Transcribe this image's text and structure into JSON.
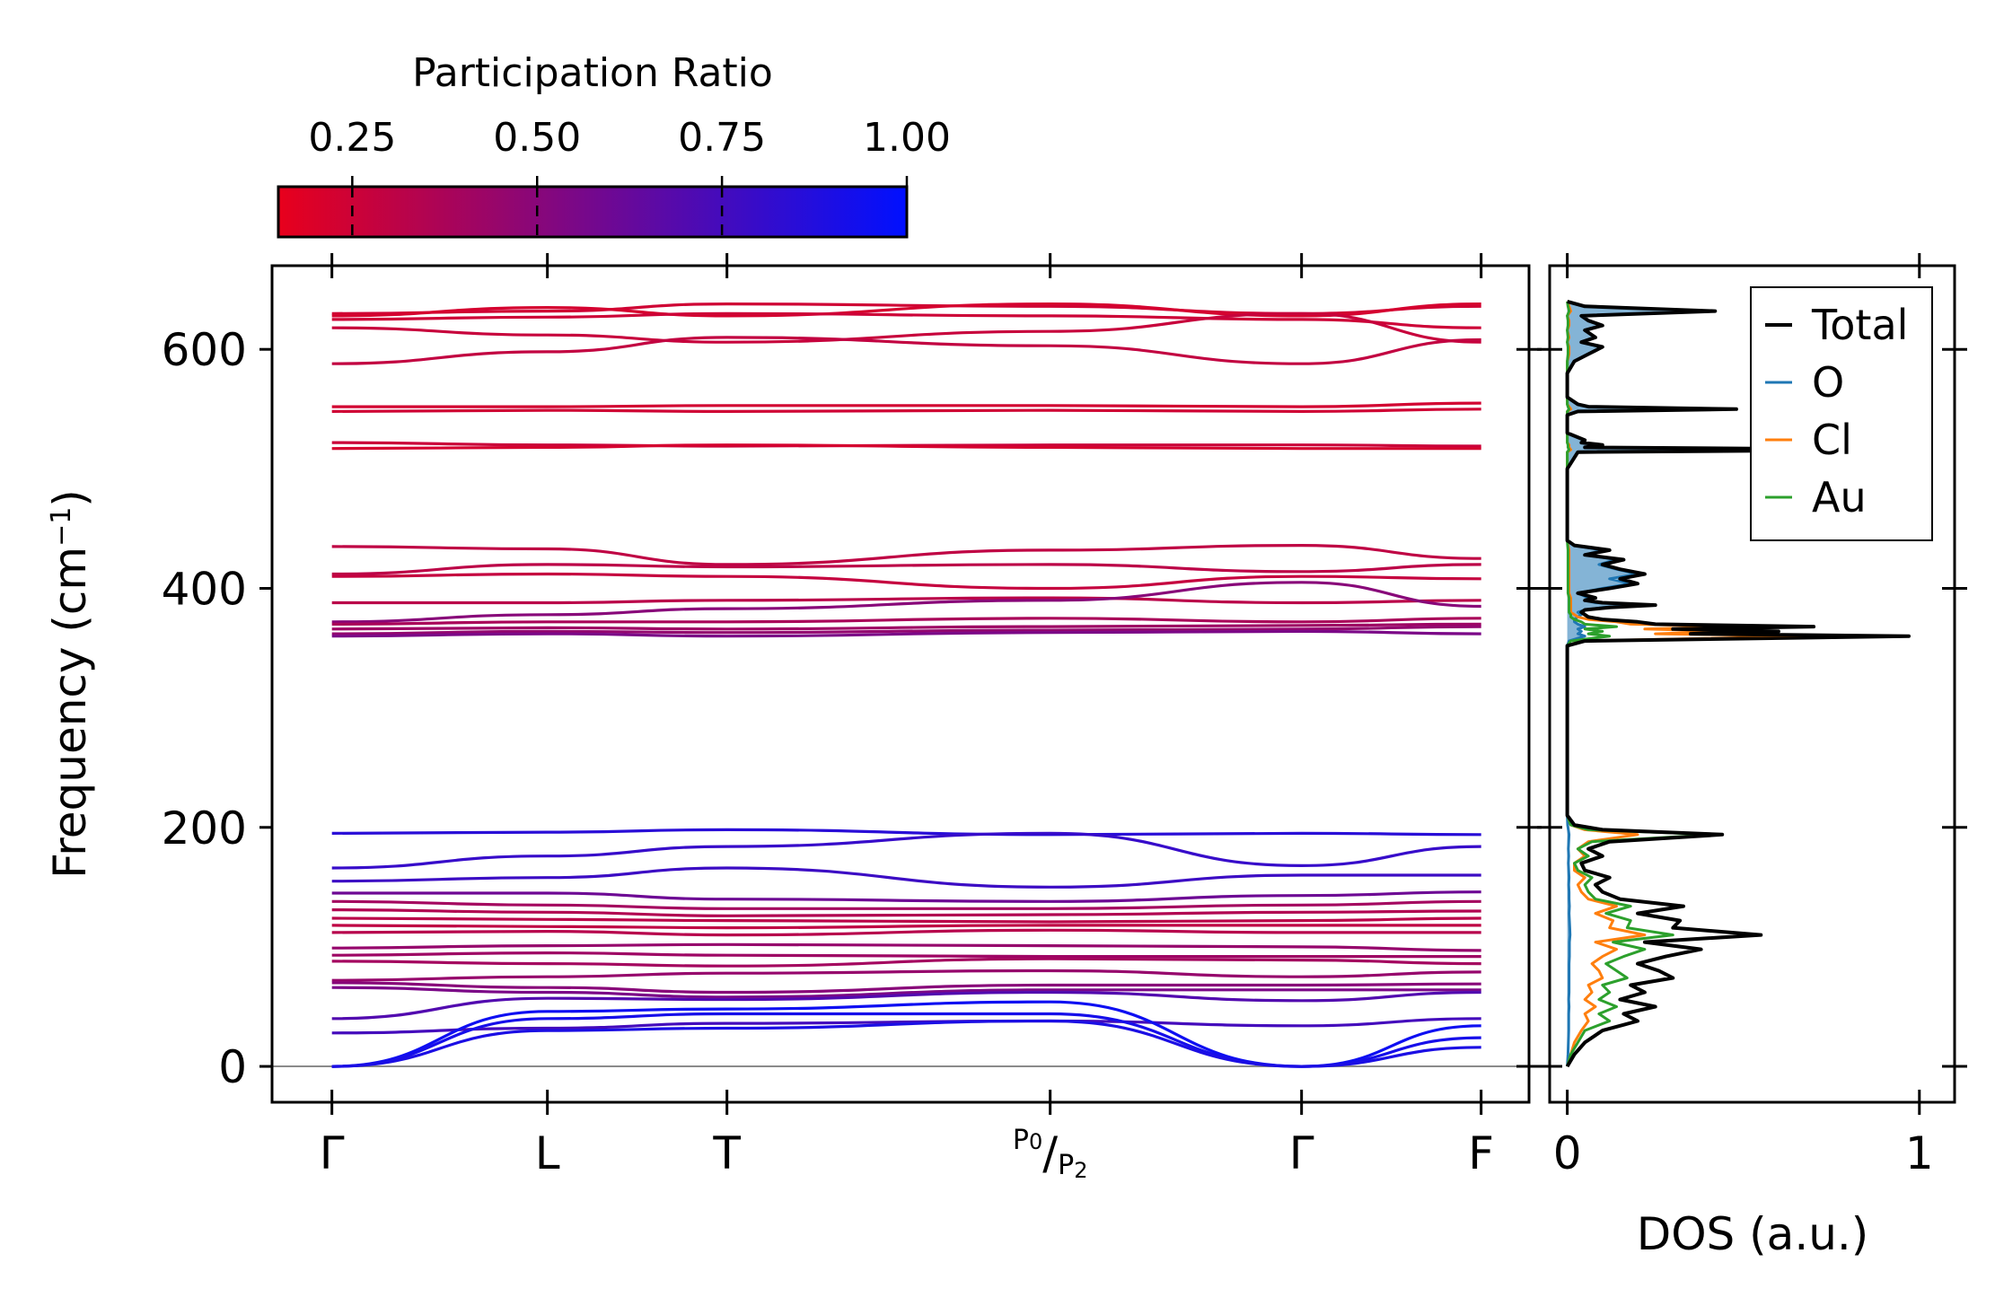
{
  "chart_data": [
    {
      "type": "line",
      "name": "phonon-band-structure",
      "ylabel": "Frequency (cm⁻¹)",
      "ylabel_parts": {
        "base": "Frequency (cm",
        "sup": "−1",
        "close": ")"
      },
      "ylim": [
        -30,
        670
      ],
      "yticks": [
        0,
        200,
        400,
        600
      ],
      "kpath": [
        {
          "label": "Γ",
          "pos": 0.0
        },
        {
          "label": "L",
          "pos": 0.18
        },
        {
          "label": "T",
          "pos": 0.33
        },
        {
          "label": "P0/P2",
          "pos": 0.6
        },
        {
          "label": "Γ",
          "pos": 0.81
        },
        {
          "label": "F",
          "pos": 0.96
        }
      ],
      "kpath_xlim": [
        -0.05,
        1.0
      ],
      "special_label": {
        "a": "P",
        "a_sub": "0",
        "slash": "/",
        "b": "P",
        "b_sub": "2"
      },
      "colorbar": {
        "title": "Participation Ratio",
        "ticks": [
          "0.25",
          "0.50",
          "0.75",
          "1.00"
        ],
        "tick_values": [
          0.25,
          0.5,
          0.75,
          1.0
        ],
        "range": [
          0.15,
          1.0
        ],
        "low_color": "#e8001c",
        "high_color": "#0010ff"
      },
      "branches": [
        {
          "f": [
            630,
            632,
            638,
            636,
            630,
            636
          ],
          "pr": 0.24
        },
        {
          "f": [
            628,
            635,
            628,
            638,
            628,
            638
          ],
          "pr": 0.22
        },
        {
          "f": [
            625,
            627,
            630,
            628,
            625,
            618
          ],
          "pr": 0.25
        },
        {
          "f": [
            618,
            612,
            606,
            615,
            630,
            606
          ],
          "pr": 0.27
        },
        {
          "f": [
            588,
            598,
            610,
            603,
            588,
            608
          ],
          "pr": 0.29
        },
        {
          "f": [
            552,
            552,
            553,
            553,
            552,
            555
          ],
          "pr": 0.23
        },
        {
          "f": [
            548,
            549,
            548,
            549,
            548,
            550
          ],
          "pr": 0.24
        },
        {
          "f": [
            522,
            520,
            519,
            520,
            520,
            519
          ],
          "pr": 0.26
        },
        {
          "f": [
            517,
            518,
            520,
            518,
            517,
            517
          ],
          "pr": 0.22
        },
        {
          "f": [
            435,
            433,
            420,
            432,
            436,
            425
          ],
          "pr": 0.3
        },
        {
          "f": [
            412,
            420,
            418,
            420,
            414,
            420
          ],
          "pr": 0.31
        },
        {
          "f": [
            410,
            412,
            410,
            400,
            410,
            408
          ],
          "pr": 0.28
        },
        {
          "f": [
            388,
            388,
            390,
            392,
            388,
            390
          ],
          "pr": 0.32
        },
        {
          "f": [
            372,
            378,
            383,
            390,
            405,
            385
          ],
          "pr": 0.5
        },
        {
          "f": [
            370,
            372,
            372,
            375,
            372,
            375
          ],
          "pr": 0.38
        },
        {
          "f": [
            366,
            367,
            366,
            368,
            369,
            370
          ],
          "pr": 0.42
        },
        {
          "f": [
            362,
            364,
            363,
            365,
            366,
            368
          ],
          "pr": 0.46
        },
        {
          "f": [
            360,
            362,
            360,
            363,
            364,
            362
          ],
          "pr": 0.55
        },
        {
          "f": [
            195,
            196,
            198,
            194,
            195,
            194
          ],
          "pr": 0.85
        },
        {
          "f": [
            166,
            176,
            184,
            195,
            168,
            184
          ],
          "pr": 0.8
        },
        {
          "f": [
            155,
            158,
            166,
            150,
            160,
            160
          ],
          "pr": 0.78
        },
        {
          "f": [
            145,
            145,
            140,
            138,
            143,
            146
          ],
          "pr": 0.6
        },
        {
          "f": [
            138,
            135,
            132,
            132,
            135,
            138
          ],
          "pr": 0.4
        },
        {
          "f": [
            131,
            129,
            126,
            127,
            129,
            130
          ],
          "pr": 0.35
        },
        {
          "f": [
            124,
            123,
            122,
            121,
            122,
            124
          ],
          "pr": 0.32
        },
        {
          "f": [
            118,
            117,
            116,
            118,
            118,
            118
          ],
          "pr": 0.3
        },
        {
          "f": [
            112,
            113,
            110,
            114,
            112,
            112
          ],
          "pr": 0.33
        },
        {
          "f": [
            99,
            101,
            102,
            101,
            100,
            97
          ],
          "pr": 0.45
        },
        {
          "f": [
            93,
            95,
            93,
            92,
            92,
            92
          ],
          "pr": 0.42
        },
        {
          "f": [
            88,
            86,
            84,
            90,
            89,
            86
          ],
          "pr": 0.4
        },
        {
          "f": [
            72,
            75,
            78,
            80,
            75,
            79
          ],
          "pr": 0.45
        },
        {
          "f": [
            70,
            66,
            62,
            68,
            68,
            69
          ],
          "pr": 0.5
        },
        {
          "f": [
            66,
            62,
            58,
            64,
            64,
            64
          ],
          "pr": 0.55
        },
        {
          "f": [
            40,
            57,
            56,
            62,
            55,
            62
          ],
          "pr": 0.7
        },
        {
          "f": [
            28,
            32,
            36,
            38,
            34,
            40
          ],
          "pr": 0.75
        },
        {
          "f": [
            0,
            46,
            48,
            54,
            0,
            34
          ],
          "pr": 0.95
        },
        {
          "f": [
            0,
            40,
            44,
            44,
            0,
            24
          ],
          "pr": 0.92
        },
        {
          "f": [
            0,
            30,
            32,
            38,
            0,
            16
          ],
          "pr": 0.9
        }
      ]
    },
    {
      "type": "line",
      "name": "density-of-states",
      "xlabel": "DOS (a.u.)",
      "xlim": [
        -0.05,
        1.1
      ],
      "xticks": [
        "0",
        "1"
      ],
      "xtick_values": [
        0,
        1
      ],
      "ylim": [
        -30,
        670
      ],
      "legend_position": "top-right",
      "freq": [
        0,
        10,
        20,
        30,
        38,
        44,
        50,
        56,
        62,
        68,
        74,
        80,
        86,
        92,
        98,
        104,
        110,
        116,
        122,
        128,
        134,
        140,
        146,
        152,
        158,
        164,
        170,
        176,
        182,
        188,
        194,
        198,
        202,
        210,
        330,
        352,
        356,
        360,
        362,
        364,
        366,
        368,
        370,
        372,
        374,
        376,
        378,
        380,
        382,
        384,
        386,
        388,
        390,
        392,
        396,
        400,
        404,
        408,
        412,
        416,
        420,
        424,
        428,
        432,
        436,
        440,
        450,
        500,
        514,
        516,
        518,
        520,
        522,
        524,
        530,
        545,
        548,
        550,
        552,
        554,
        556,
        560,
        580,
        590,
        596,
        602,
        606,
        610,
        616,
        620,
        624,
        628,
        632,
        636,
        640
      ],
      "series": [
        {
          "name": "Total",
          "color": "#000000",
          "values": [
            0,
            0.02,
            0.05,
            0.1,
            0.2,
            0.16,
            0.25,
            0.15,
            0.22,
            0.18,
            0.3,
            0.26,
            0.2,
            0.28,
            0.38,
            0.22,
            0.55,
            0.3,
            0.32,
            0.2,
            0.33,
            0.15,
            0.1,
            0.08,
            0.12,
            0.05,
            0.04,
            0.1,
            0.06,
            0.12,
            0.44,
            0.1,
            0.02,
            0,
            0,
            0,
            0.05,
            0.97,
            0.35,
            0.6,
            0.3,
            0.7,
            0.25,
            0.2,
            0.1,
            0.06,
            0.05,
            0.04,
            0.05,
            0.12,
            0.25,
            0.1,
            0.05,
            0.08,
            0.03,
            0.12,
            0.2,
            0.15,
            0.22,
            0.15,
            0.1,
            0.16,
            0.05,
            0.12,
            0.02,
            0,
            0,
            0,
            0.03,
            0.95,
            0.05,
            0.1,
            0.04,
            0.05,
            0,
            0,
            0.03,
            0.48,
            0.06,
            0.03,
            0.02,
            0,
            0,
            0.02,
            0.06,
            0.1,
            0.04,
            0.08,
            0.05,
            0.1,
            0.06,
            0.04,
            0.42,
            0.05,
            0
          ]
        },
        {
          "name": "O",
          "color": "#1f77b4",
          "values": [
            0,
            0.002,
            0.003,
            0.004,
            0.004,
            0.004,
            0.005,
            0.004,
            0.005,
            0.005,
            0.005,
            0.005,
            0.005,
            0.006,
            0.006,
            0.006,
            0.008,
            0.007,
            0.006,
            0.005,
            0.006,
            0.005,
            0.005,
            0.004,
            0.005,
            0.004,
            0.003,
            0.004,
            0.003,
            0.004,
            0.005,
            0.003,
            0.001,
            0,
            0,
            0,
            0.005,
            0.05,
            0.03,
            0.04,
            0.03,
            0.05,
            0.03,
            0.02,
            0.02,
            0.03,
            0.04,
            0.03,
            0.05,
            0.1,
            0.2,
            0.08,
            0.05,
            0.06,
            0.03,
            0.1,
            0.18,
            0.12,
            0.2,
            0.14,
            0.09,
            0.14,
            0.05,
            0.1,
            0.02,
            0,
            0,
            0,
            0.03,
            0.94,
            0.05,
            0.1,
            0.04,
            0.05,
            0,
            0,
            0.03,
            0.47,
            0.06,
            0.03,
            0.02,
            0,
            0,
            0.02,
            0.06,
            0.1,
            0.04,
            0.08,
            0.05,
            0.1,
            0.06,
            0.04,
            0.41,
            0.05,
            0
          ]
        },
        {
          "name": "Cl",
          "color": "#ff7f0e",
          "values": [
            0,
            0.01,
            0.02,
            0.04,
            0.06,
            0.05,
            0.08,
            0.05,
            0.07,
            0.06,
            0.1,
            0.09,
            0.07,
            0.1,
            0.14,
            0.08,
            0.22,
            0.12,
            0.13,
            0.08,
            0.14,
            0.06,
            0.04,
            0.03,
            0.05,
            0.02,
            0.02,
            0.05,
            0.03,
            0.06,
            0.2,
            0.05,
            0.01,
            0,
            0,
            0,
            0.04,
            0.7,
            0.25,
            0.45,
            0.22,
            0.5,
            0.18,
            0.14,
            0.06,
            0.03,
            0.02,
            0.01,
            0.01,
            0.01,
            0.01,
            0.01,
            0.01,
            0.01,
            0.005,
            0.005,
            0.005,
            0.005,
            0.005,
            0.005,
            0.005,
            0.005,
            0.005,
            0.005,
            0.002,
            0,
            0,
            0,
            0,
            0.01,
            0.005,
            0.005,
            0,
            0,
            0,
            0,
            0,
            0.01,
            0.005,
            0,
            0,
            0,
            0,
            0,
            0.005,
            0.005,
            0,
            0.005,
            0,
            0.005,
            0.005,
            0,
            0.01,
            0.005,
            0
          ]
        },
        {
          "name": "Au",
          "color": "#2ca02c",
          "values": [
            0,
            0.01,
            0.03,
            0.05,
            0.12,
            0.09,
            0.14,
            0.09,
            0.12,
            0.1,
            0.17,
            0.14,
            0.11,
            0.16,
            0.22,
            0.13,
            0.3,
            0.17,
            0.18,
            0.11,
            0.18,
            0.08,
            0.06,
            0.05,
            0.07,
            0.03,
            0.02,
            0.06,
            0.03,
            0.07,
            0.42,
            0.06,
            0.01,
            0,
            0,
            0,
            0.01,
            0.12,
            0.06,
            0.1,
            0.05,
            0.14,
            0.05,
            0.04,
            0.02,
            0.01,
            0.01,
            0.005,
            0.005,
            0.005,
            0.005,
            0.005,
            0.005,
            0.005,
            0.002,
            0.002,
            0.002,
            0.002,
            0.002,
            0.002,
            0.002,
            0.002,
            0.002,
            0.002,
            0.001,
            0,
            0,
            0,
            0,
            0.005,
            0.002,
            0.002,
            0,
            0,
            0,
            0,
            0,
            0.005,
            0.002,
            0,
            0,
            0,
            0,
            0,
            0.002,
            0.002,
            0,
            0.002,
            0,
            0.002,
            0.002,
            0,
            0.005,
            0.002,
            0
          ]
        }
      ]
    }
  ]
}
